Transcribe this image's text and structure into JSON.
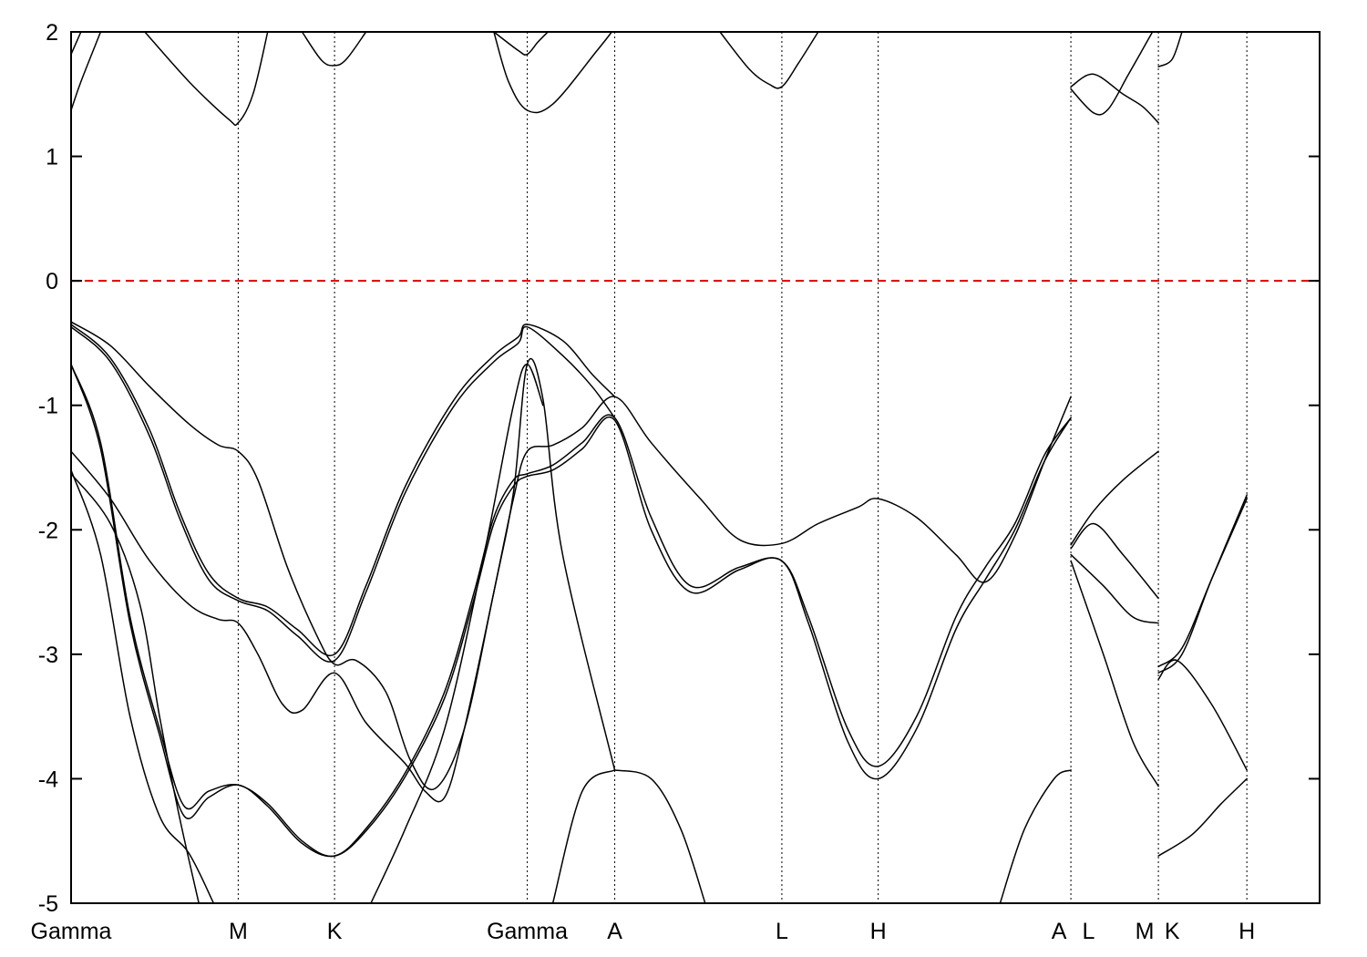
{
  "chart_data": {
    "type": "line",
    "title": "",
    "xlabel": "",
    "ylabel": "",
    "ylim": [
      -5,
      2
    ],
    "yticks": [
      2,
      1,
      0,
      -1,
      -2,
      -3,
      -4,
      -5
    ],
    "ytick_labels": [
      "2",
      "1",
      "0",
      "-1",
      "-2",
      "-3",
      "-4",
      "-5"
    ],
    "xlim": [
      0,
      12.7
    ],
    "kpoints": [
      {
        "label": "Gamma",
        "x": 0.0
      },
      {
        "label": "M",
        "x": 1.7
      },
      {
        "label": "K",
        "x": 2.68
      },
      {
        "label": "Gamma",
        "x": 4.64
      },
      {
        "label": "A",
        "x": 5.53
      },
      {
        "label": "L",
        "x": 7.23
      },
      {
        "label": "H",
        "x": 8.21
      },
      {
        "label": "A",
        "x": 10.17
      },
      {
        "label": "L",
        "x": 10.17
      },
      {
        "label": "M",
        "x": 11.06
      },
      {
        "label": "K",
        "x": 11.06
      },
      {
        "label": "H",
        "x": 11.96
      }
    ],
    "tick_label_positions": [
      {
        "label": "Gamma",
        "x": 0.0
      },
      {
        "label": "M",
        "x": 1.7
      },
      {
        "label": "K",
        "x": 2.68
      },
      {
        "label": "Gamma",
        "x": 4.64
      },
      {
        "label": "A",
        "x": 5.53
      },
      {
        "label": "L",
        "x": 7.23
      },
      {
        "label": "H",
        "x": 8.21
      },
      {
        "label": "A",
        "x": 10.05
      },
      {
        "label": "L",
        "x": 10.35
      },
      {
        "label": "M",
        "x": 10.92
      },
      {
        "label": "K",
        "x": 11.2
      },
      {
        "label": "H",
        "x": 11.96
      }
    ],
    "fermi_level": 0,
    "grid": false,
    "colors": {
      "bands": "#000000",
      "fermi": "#e00000"
    },
    "series": [
      {
        "points": [
          [
            0.0,
            1.82
          ],
          [
            0.1,
            2.0
          ]
        ]
      },
      {
        "points": [
          [
            0.0,
            1.37
          ],
          [
            0.1,
            1.6
          ],
          [
            0.3,
            2.0
          ]
        ]
      },
      {
        "points": [
          [
            0.75,
            2.0
          ],
          [
            1.2,
            1.6
          ],
          [
            1.6,
            1.3
          ],
          [
            1.7,
            1.27
          ],
          [
            1.85,
            1.5
          ],
          [
            2.0,
            2.0
          ]
        ]
      },
      {
        "points": [
          [
            2.35,
            2.0
          ],
          [
            2.55,
            1.77
          ],
          [
            2.68,
            1.73
          ],
          [
            2.8,
            1.78
          ],
          [
            3.0,
            2.0
          ]
        ]
      },
      {
        "points": [
          [
            4.3,
            2.0
          ],
          [
            4.55,
            1.85
          ],
          [
            4.64,
            1.82
          ],
          [
            4.75,
            1.92
          ],
          [
            4.85,
            2.0
          ]
        ]
      },
      {
        "points": [
          [
            4.3,
            2.0
          ],
          [
            4.45,
            1.6
          ],
          [
            4.64,
            1.37
          ],
          [
            4.9,
            1.42
          ],
          [
            5.35,
            1.85
          ],
          [
            5.5,
            2.0
          ]
        ]
      },
      {
        "points": [
          [
            6.6,
            2.0
          ],
          [
            6.9,
            1.7
          ],
          [
            7.1,
            1.58
          ],
          [
            7.23,
            1.56
          ],
          [
            7.4,
            1.75
          ],
          [
            7.6,
            2.0
          ]
        ]
      },
      {
        "points": [
          [
            10.17,
            1.56
          ],
          [
            10.4,
            1.66
          ],
          [
            10.7,
            1.5
          ],
          [
            10.9,
            1.4
          ],
          [
            11.06,
            1.27
          ]
        ]
      },
      {
        "points": [
          [
            10.17,
            1.54
          ],
          [
            10.4,
            1.35
          ],
          [
            10.55,
            1.38
          ],
          [
            10.75,
            1.65
          ],
          [
            11.0,
            2.0
          ]
        ]
      },
      {
        "points": [
          [
            11.06,
            1.72
          ],
          [
            11.2,
            1.78
          ],
          [
            11.3,
            2.0
          ]
        ]
      },
      {
        "points": [
          [
            0.0,
            -0.33
          ],
          [
            0.4,
            -0.52
          ],
          [
            0.8,
            -0.85
          ],
          [
            1.2,
            -1.15
          ],
          [
            1.5,
            -1.32
          ],
          [
            1.7,
            -1.37
          ],
          [
            1.9,
            -1.6
          ],
          [
            2.2,
            -2.3
          ],
          [
            2.5,
            -2.85
          ],
          [
            2.68,
            -3.08
          ],
          [
            2.9,
            -3.05
          ],
          [
            3.2,
            -3.3
          ],
          [
            3.45,
            -3.85
          ],
          [
            3.7,
            -4.08
          ],
          [
            4.0,
            -3.6
          ],
          [
            4.3,
            -2.5
          ],
          [
            4.5,
            -1.75
          ],
          [
            4.64,
            -1.37
          ],
          [
            4.9,
            -1.32
          ],
          [
            5.2,
            -1.18
          ],
          [
            5.53,
            -0.93
          ],
          [
            5.9,
            -1.3
          ],
          [
            6.4,
            -1.75
          ],
          [
            6.8,
            -2.08
          ],
          [
            7.23,
            -2.11
          ],
          [
            7.6,
            -1.95
          ],
          [
            8.0,
            -1.82
          ],
          [
            8.21,
            -1.75
          ],
          [
            8.6,
            -1.9
          ],
          [
            9.0,
            -2.2
          ],
          [
            9.3,
            -2.42
          ],
          [
            9.6,
            -2.05
          ],
          [
            9.9,
            -1.45
          ],
          [
            10.17,
            -0.93
          ]
        ]
      },
      {
        "points": [
          [
            0.0,
            -0.35
          ],
          [
            0.4,
            -0.62
          ],
          [
            0.8,
            -1.2
          ],
          [
            1.1,
            -1.85
          ],
          [
            1.4,
            -2.35
          ],
          [
            1.7,
            -2.55
          ],
          [
            2.0,
            -2.62
          ],
          [
            2.3,
            -2.8
          ],
          [
            2.68,
            -3.0
          ],
          [
            3.0,
            -2.45
          ],
          [
            3.4,
            -1.65
          ],
          [
            3.9,
            -0.95
          ],
          [
            4.3,
            -0.6
          ],
          [
            4.55,
            -0.45
          ],
          [
            4.64,
            -0.35
          ],
          [
            5.0,
            -0.48
          ],
          [
            5.3,
            -0.75
          ],
          [
            5.53,
            -0.93
          ]
        ]
      },
      {
        "points": [
          [
            0.0,
            -0.37
          ],
          [
            0.4,
            -0.65
          ],
          [
            0.8,
            -1.25
          ],
          [
            1.1,
            -1.9
          ],
          [
            1.4,
            -2.4
          ],
          [
            1.7,
            -2.57
          ],
          [
            2.0,
            -2.65
          ],
          [
            2.3,
            -2.85
          ],
          [
            2.68,
            -3.05
          ],
          [
            3.0,
            -2.5
          ],
          [
            3.4,
            -1.7
          ],
          [
            3.9,
            -1.0
          ],
          [
            4.3,
            -0.65
          ],
          [
            4.55,
            -0.5
          ],
          [
            4.64,
            -0.37
          ],
          [
            5.0,
            -0.6
          ],
          [
            5.3,
            -0.85
          ],
          [
            5.53,
            -1.1
          ]
        ]
      },
      {
        "points": [
          [
            0.0,
            -0.67
          ],
          [
            0.3,
            -1.3
          ],
          [
            0.6,
            -2.7
          ],
          [
            0.9,
            -3.6
          ],
          [
            1.15,
            -4.22
          ],
          [
            1.4,
            -4.1
          ],
          [
            1.7,
            -4.05
          ],
          [
            2.0,
            -4.2
          ],
          [
            2.35,
            -4.5
          ],
          [
            2.68,
            -4.62
          ],
          [
            3.0,
            -4.4
          ],
          [
            3.4,
            -3.95
          ],
          [
            3.8,
            -3.3
          ],
          [
            4.1,
            -2.5
          ],
          [
            4.3,
            -1.9
          ],
          [
            4.5,
            -1.6
          ],
          [
            4.64,
            -1.55
          ],
          [
            4.9,
            -1.48
          ],
          [
            5.2,
            -1.3
          ],
          [
            5.53,
            -1.1
          ],
          [
            5.9,
            -1.9
          ],
          [
            6.3,
            -2.45
          ],
          [
            6.8,
            -2.3
          ],
          [
            7.23,
            -2.25
          ],
          [
            7.5,
            -2.7
          ],
          [
            7.9,
            -3.6
          ],
          [
            8.21,
            -3.9
          ],
          [
            8.6,
            -3.5
          ],
          [
            9.0,
            -2.7
          ],
          [
            9.3,
            -2.3
          ],
          [
            9.6,
            -1.95
          ],
          [
            9.9,
            -1.4
          ],
          [
            10.17,
            -1.1
          ]
        ]
      },
      {
        "points": [
          [
            0.0,
            -0.67
          ],
          [
            0.3,
            -1.35
          ],
          [
            0.6,
            -2.75
          ],
          [
            0.9,
            -3.65
          ],
          [
            1.15,
            -4.3
          ],
          [
            1.4,
            -4.15
          ],
          [
            1.7,
            -4.05
          ],
          [
            2.0,
            -4.22
          ],
          [
            2.35,
            -4.52
          ],
          [
            2.68,
            -4.62
          ],
          [
            3.0,
            -4.42
          ],
          [
            3.4,
            -3.98
          ],
          [
            3.8,
            -3.35
          ],
          [
            4.1,
            -2.55
          ],
          [
            4.3,
            -1.95
          ],
          [
            4.5,
            -1.65
          ],
          [
            4.64,
            -1.57
          ],
          [
            4.9,
            -1.52
          ],
          [
            5.2,
            -1.35
          ],
          [
            5.53,
            -1.12
          ],
          [
            5.9,
            -2.0
          ],
          [
            6.3,
            -2.5
          ],
          [
            6.8,
            -2.32
          ],
          [
            7.23,
            -2.25
          ],
          [
            7.5,
            -2.75
          ],
          [
            7.9,
            -3.7
          ],
          [
            8.21,
            -4.0
          ],
          [
            8.6,
            -3.6
          ],
          [
            9.0,
            -2.8
          ],
          [
            9.3,
            -2.4
          ],
          [
            9.6,
            -2.0
          ],
          [
            9.9,
            -1.45
          ],
          [
            10.17,
            -1.1
          ]
        ]
      },
      {
        "points": [
          [
            0.0,
            -1.37
          ],
          [
            0.4,
            -1.75
          ],
          [
            0.8,
            -2.25
          ],
          [
            1.2,
            -2.6
          ],
          [
            1.5,
            -2.72
          ],
          [
            1.7,
            -2.75
          ],
          [
            1.9,
            -3.0
          ],
          [
            2.15,
            -3.4
          ],
          [
            2.35,
            -3.45
          ],
          [
            2.68,
            -3.15
          ],
          [
            3.0,
            -3.55
          ],
          [
            3.4,
            -3.88
          ],
          [
            3.6,
            -4.1
          ],
          [
            3.8,
            -4.15
          ],
          [
            4.0,
            -3.6
          ],
          [
            4.3,
            -2.5
          ],
          [
            4.5,
            -1.7
          ],
          [
            4.64,
            -0.67
          ],
          [
            4.8,
            -0.95
          ],
          [
            5.0,
            -2.2
          ],
          [
            5.53,
            -3.93
          ]
        ]
      },
      {
        "points": [
          [
            0.0,
            -1.55
          ],
          [
            0.4,
            -1.95
          ],
          [
            0.7,
            -2.6
          ],
          [
            0.9,
            -3.5
          ],
          [
            1.1,
            -4.3
          ],
          [
            1.3,
            -5.0
          ]
        ]
      },
      {
        "points": [
          [
            0.0,
            -1.52
          ],
          [
            0.3,
            -2.2
          ],
          [
            0.6,
            -3.5
          ],
          [
            0.9,
            -4.3
          ],
          [
            1.2,
            -4.6
          ],
          [
            1.45,
            -5.0
          ]
        ]
      },
      {
        "points": [
          [
            5.53,
            -3.93
          ],
          [
            5.9,
            -4.0
          ],
          [
            6.2,
            -4.4
          ],
          [
            6.45,
            -5.0
          ]
        ]
      },
      {
        "points": [
          [
            9.45,
            -5.0
          ],
          [
            9.7,
            -4.4
          ],
          [
            10.0,
            -4.0
          ],
          [
            10.17,
            -3.93
          ]
        ]
      },
      {
        "points": [
          [
            3.05,
            -5.0
          ],
          [
            3.4,
            -4.4
          ],
          [
            3.8,
            -3.6
          ],
          [
            4.2,
            -2.2
          ],
          [
            4.5,
            -1.0
          ],
          [
            4.64,
            -0.67
          ],
          [
            4.8,
            -1.0
          ]
        ]
      },
      {
        "points": [
          [
            5.53,
            -3.93
          ],
          [
            5.2,
            -4.1
          ],
          [
            4.9,
            -5.0
          ]
        ]
      },
      {
        "points": [
          [
            10.17,
            -2.12
          ],
          [
            10.4,
            -1.85
          ],
          [
            10.7,
            -1.6
          ],
          [
            11.06,
            -1.37
          ]
        ]
      },
      {
        "points": [
          [
            10.17,
            -2.15
          ],
          [
            10.4,
            -1.95
          ],
          [
            10.7,
            -2.2
          ],
          [
            11.06,
            -2.55
          ]
        ]
      },
      {
        "points": [
          [
            10.17,
            -2.2
          ],
          [
            10.5,
            -2.45
          ],
          [
            10.8,
            -2.7
          ],
          [
            11.06,
            -2.75
          ]
        ]
      },
      {
        "points": [
          [
            10.17,
            -2.25
          ],
          [
            10.5,
            -3.0
          ],
          [
            10.8,
            -3.7
          ],
          [
            11.06,
            -4.06
          ]
        ]
      },
      {
        "points": [
          [
            11.06,
            -3.15
          ],
          [
            11.3,
            -3.0
          ],
          [
            11.6,
            -2.4
          ],
          [
            11.96,
            -1.72
          ]
        ]
      },
      {
        "points": [
          [
            11.06,
            -3.1
          ],
          [
            11.3,
            -2.95
          ],
          [
            11.6,
            -2.4
          ],
          [
            11.96,
            -1.75
          ]
        ]
      },
      {
        "points": [
          [
            11.06,
            -3.2
          ],
          [
            11.25,
            -3.05
          ],
          [
            11.6,
            -3.4
          ],
          [
            11.96,
            -3.93
          ]
        ]
      },
      {
        "points": [
          [
            11.06,
            -4.62
          ],
          [
            11.4,
            -4.45
          ],
          [
            11.7,
            -4.2
          ],
          [
            11.96,
            -4.0
          ]
        ]
      }
    ]
  }
}
